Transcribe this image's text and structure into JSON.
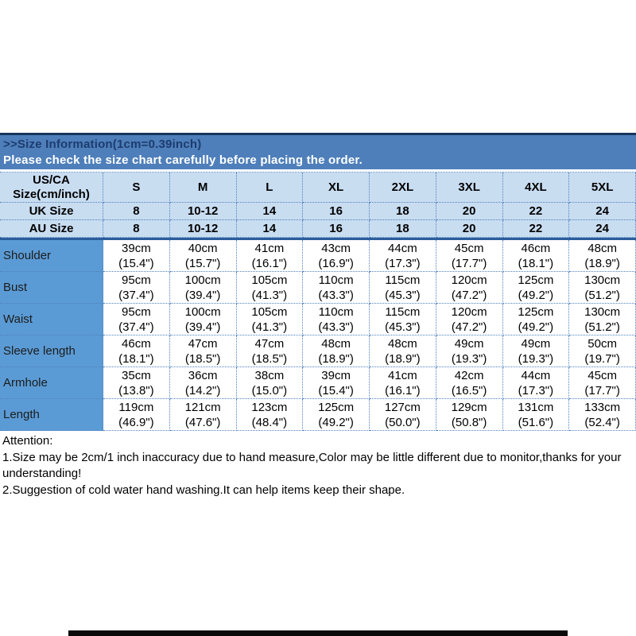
{
  "header": {
    "title": ">>Size Information(1cm=0.39inch)",
    "subtitle": "Please check the size chart carefully before placing the order."
  },
  "table": {
    "corner_line1": "US/CA",
    "corner_line2": "Size(cm/inch)",
    "size_columns": [
      "S",
      "M",
      "L",
      "XL",
      "2XL",
      "3XL",
      "4XL",
      "5XL"
    ],
    "region_rows": [
      {
        "label": "UK Size",
        "values": [
          "8",
          "10-12",
          "14",
          "16",
          "18",
          "20",
          "22",
          "24"
        ]
      },
      {
        "label": "AU Size",
        "values": [
          "8",
          "10-12",
          "14",
          "16",
          "18",
          "20",
          "22",
          "24"
        ]
      }
    ],
    "measurement_rows": [
      {
        "label": "Shoulder",
        "cm": [
          "39cm",
          "40cm",
          "41cm",
          "43cm",
          "44cm",
          "45cm",
          "46cm",
          "48cm"
        ],
        "inch": [
          "(15.4\")",
          "(15.7\")",
          "(16.1\")",
          "(16.9\")",
          "(17.3\")",
          "(17.7\")",
          "(18.1\")",
          "(18.9\")"
        ]
      },
      {
        "label": "Bust",
        "cm": [
          "95cm",
          "100cm",
          "105cm",
          "110cm",
          "115cm",
          "120cm",
          "125cm",
          "130cm"
        ],
        "inch": [
          "(37.4\")",
          "(39.4\")",
          "(41.3\")",
          "(43.3\")",
          "(45.3\")",
          "(47.2\")",
          "(49.2\")",
          "(51.2\")"
        ]
      },
      {
        "label": "Waist",
        "cm": [
          "95cm",
          "100cm",
          "105cm",
          "110cm",
          "115cm",
          "120cm",
          "125cm",
          "130cm"
        ],
        "inch": [
          "(37.4\")",
          "(39.4\")",
          "(41.3\")",
          "(43.3\")",
          "(45.3\")",
          "(47.2\")",
          "(49.2\")",
          "(51.2\")"
        ]
      },
      {
        "label": "Sleeve length",
        "cm": [
          "46cm",
          "47cm",
          "47cm",
          "48cm",
          "48cm",
          "49cm",
          "49cm",
          "50cm"
        ],
        "inch": [
          "(18.1\")",
          "(18.5\")",
          "(18.5\")",
          "(18.9\")",
          "(18.9\")",
          "(19.3\")",
          "(19.3\")",
          "(19.7\")"
        ]
      },
      {
        "label": "Armhole",
        "cm": [
          "35cm",
          "36cm",
          "38cm",
          "39cm",
          "41cm",
          "42cm",
          "44cm",
          "45cm"
        ],
        "inch": [
          "(13.8\")",
          "(14.2\")",
          "(15.0\")",
          "(15.4\")",
          "(16.1\")",
          "(16.5\")",
          "(17.3\")",
          "(17.7\")"
        ]
      },
      {
        "label": "Length",
        "cm": [
          "119cm",
          "121cm",
          "123cm",
          "125cm",
          "127cm",
          "129cm",
          "131cm",
          "133cm"
        ],
        "inch": [
          "(46.9\")",
          "(47.6\")",
          "(48.4\")",
          "(49.2\")",
          "(50.0\")",
          "(50.8\")",
          "(51.6\")",
          "(52.4\")"
        ]
      }
    ]
  },
  "attention": {
    "heading": "Attention:",
    "note1": "1.Size may be 2cm/1 inch inaccuracy due to hand measure,Color may be little different due to monitor,thanks for your understanding!",
    "note2": "2.Suggestion of cold water hand washing.It can help items keep their shape."
  },
  "colors": {
    "header_bar": "#4e7fba",
    "header_bar_top_border": "#17375e",
    "header_title_text": "#1d3c6e",
    "header_subtitle_text": "#ffffff",
    "table_header_bg": "#c9ddf1",
    "label_column_bg": "#5b9bd5",
    "dotted_border": "#4f81bd",
    "separator_line": "#2b5d9b",
    "bottom_bar": "#0a0a0a"
  }
}
